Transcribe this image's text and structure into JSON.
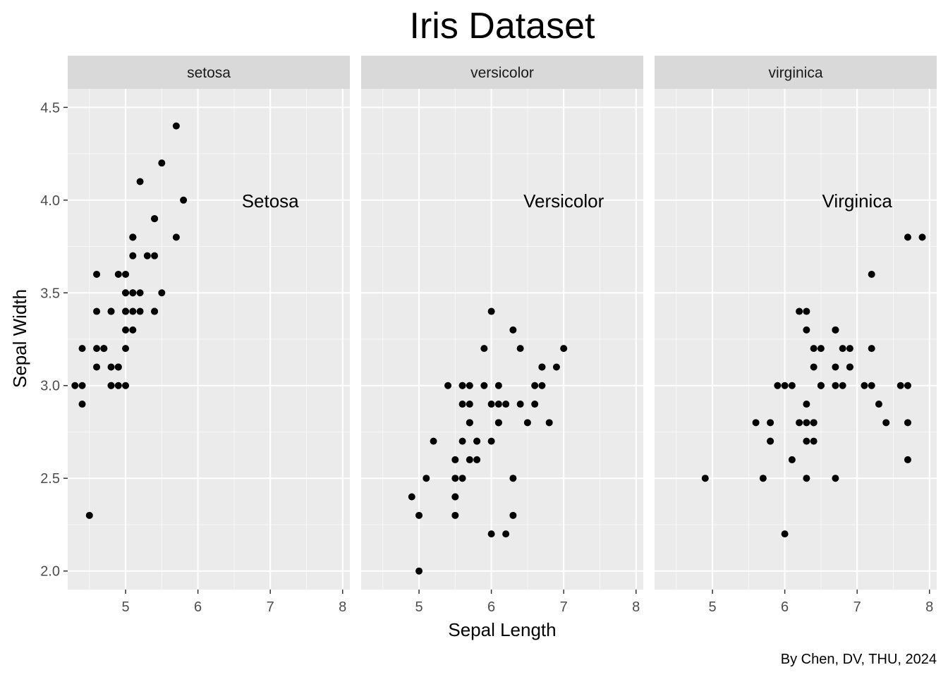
{
  "chart_data": {
    "type": "scatter",
    "title": "Iris Dataset",
    "xlabel": "Sepal Length",
    "ylabel": "Sepal Width",
    "caption": "By Chen, DV, THU, 2024",
    "xlim": [
      4.2,
      8.1
    ],
    "ylim": [
      1.9,
      4.6
    ],
    "x_ticks": [
      5,
      6,
      7,
      8
    ],
    "y_ticks": [
      2.0,
      2.5,
      3.0,
      3.5,
      4.0,
      4.5
    ],
    "x_tick_labels": [
      "5",
      "6",
      "7",
      "8"
    ],
    "y_tick_labels": [
      "2.0",
      "2.5",
      "3.0",
      "3.5",
      "4.0",
      "4.5"
    ],
    "grid": true,
    "colors": {
      "panel_bg": "#ebebeb",
      "strip_bg": "#d9d9d9",
      "grid_major": "#ffffff",
      "point": "#000000"
    },
    "panels": [
      {
        "strip": "setosa",
        "annotation": {
          "text": "Setosa",
          "x": 7.0,
          "y": 4.0
        },
        "points": [
          [
            5.1,
            3.5
          ],
          [
            4.9,
            3.0
          ],
          [
            4.7,
            3.2
          ],
          [
            4.6,
            3.1
          ],
          [
            5.0,
            3.6
          ],
          [
            5.4,
            3.9
          ],
          [
            4.6,
            3.4
          ],
          [
            5.0,
            3.4
          ],
          [
            4.4,
            2.9
          ],
          [
            4.9,
            3.1
          ],
          [
            5.4,
            3.7
          ],
          [
            4.8,
            3.4
          ],
          [
            4.8,
            3.0
          ],
          [
            4.3,
            3.0
          ],
          [
            5.8,
            4.0
          ],
          [
            5.7,
            4.4
          ],
          [
            5.4,
            3.9
          ],
          [
            5.1,
            3.5
          ],
          [
            5.7,
            3.8
          ],
          [
            5.1,
            3.8
          ],
          [
            5.4,
            3.4
          ],
          [
            5.1,
            3.7
          ],
          [
            4.6,
            3.6
          ],
          [
            5.1,
            3.3
          ],
          [
            4.8,
            3.4
          ],
          [
            5.0,
            3.0
          ],
          [
            5.0,
            3.4
          ],
          [
            5.2,
            3.5
          ],
          [
            5.2,
            3.4
          ],
          [
            4.7,
            3.2
          ],
          [
            4.8,
            3.1
          ],
          [
            5.4,
            3.4
          ],
          [
            5.2,
            4.1
          ],
          [
            5.5,
            4.2
          ],
          [
            4.9,
            3.1
          ],
          [
            5.0,
            3.2
          ],
          [
            5.5,
            3.5
          ],
          [
            4.9,
            3.6
          ],
          [
            4.4,
            3.0
          ],
          [
            5.1,
            3.4
          ],
          [
            5.0,
            3.5
          ],
          [
            4.5,
            2.3
          ],
          [
            4.4,
            3.2
          ],
          [
            5.0,
            3.5
          ],
          [
            5.1,
            3.8
          ],
          [
            4.8,
            3.0
          ],
          [
            5.1,
            3.8
          ],
          [
            4.6,
            3.2
          ],
          [
            5.3,
            3.7
          ],
          [
            5.0,
            3.3
          ]
        ]
      },
      {
        "strip": "versicolor",
        "annotation": {
          "text": "Versicolor",
          "x": 7.0,
          "y": 4.0
        },
        "points": [
          [
            7.0,
            3.2
          ],
          [
            6.4,
            3.2
          ],
          [
            6.9,
            3.1
          ],
          [
            5.5,
            2.3
          ],
          [
            6.5,
            2.8
          ],
          [
            5.7,
            2.8
          ],
          [
            6.3,
            3.3
          ],
          [
            4.9,
            2.4
          ],
          [
            6.6,
            2.9
          ],
          [
            5.2,
            2.7
          ],
          [
            5.0,
            2.0
          ],
          [
            5.9,
            3.0
          ],
          [
            6.0,
            2.2
          ],
          [
            6.1,
            2.9
          ],
          [
            5.6,
            2.9
          ],
          [
            6.7,
            3.1
          ],
          [
            5.6,
            3.0
          ],
          [
            5.8,
            2.7
          ],
          [
            6.2,
            2.2
          ],
          [
            5.6,
            2.5
          ],
          [
            5.9,
            3.2
          ],
          [
            6.1,
            2.8
          ],
          [
            6.3,
            2.5
          ],
          [
            6.1,
            2.8
          ],
          [
            6.4,
            2.9
          ],
          [
            6.6,
            3.0
          ],
          [
            6.8,
            2.8
          ],
          [
            6.7,
            3.0
          ],
          [
            6.0,
            2.9
          ],
          [
            5.7,
            2.6
          ],
          [
            5.5,
            2.4
          ],
          [
            5.5,
            2.4
          ],
          [
            5.8,
            2.7
          ],
          [
            6.0,
            2.7
          ],
          [
            5.4,
            3.0
          ],
          [
            6.0,
            3.4
          ],
          [
            6.7,
            3.1
          ],
          [
            6.3,
            2.3
          ],
          [
            5.6,
            3.0
          ],
          [
            5.5,
            2.5
          ],
          [
            5.5,
            2.6
          ],
          [
            6.1,
            3.0
          ],
          [
            5.8,
            2.6
          ],
          [
            5.0,
            2.3
          ],
          [
            5.6,
            2.7
          ],
          [
            5.7,
            3.0
          ],
          [
            5.7,
            2.9
          ],
          [
            6.2,
            2.9
          ],
          [
            5.1,
            2.5
          ],
          [
            5.7,
            2.8
          ]
        ]
      },
      {
        "strip": "virginica",
        "annotation": {
          "text": "Virginica",
          "x": 7.0,
          "y": 4.0
        },
        "points": [
          [
            6.3,
            3.3
          ],
          [
            5.8,
            2.7
          ],
          [
            7.1,
            3.0
          ],
          [
            6.3,
            2.9
          ],
          [
            6.5,
            3.0
          ],
          [
            7.6,
            3.0
          ],
          [
            4.9,
            2.5
          ],
          [
            7.3,
            2.9
          ],
          [
            6.7,
            2.5
          ],
          [
            7.2,
            3.6
          ],
          [
            6.5,
            3.2
          ],
          [
            6.4,
            2.7
          ],
          [
            6.8,
            3.0
          ],
          [
            5.7,
            2.5
          ],
          [
            5.8,
            2.8
          ],
          [
            6.4,
            3.2
          ],
          [
            6.5,
            3.0
          ],
          [
            7.7,
            3.8
          ],
          [
            7.7,
            2.6
          ],
          [
            6.0,
            2.2
          ],
          [
            6.9,
            3.2
          ],
          [
            5.6,
            2.8
          ],
          [
            7.7,
            2.8
          ],
          [
            6.3,
            2.7
          ],
          [
            6.7,
            3.3
          ],
          [
            7.2,
            3.2
          ],
          [
            6.2,
            2.8
          ],
          [
            6.1,
            3.0
          ],
          [
            6.4,
            2.8
          ],
          [
            7.2,
            3.0
          ],
          [
            7.4,
            2.8
          ],
          [
            7.9,
            3.8
          ],
          [
            6.4,
            2.8
          ],
          [
            6.3,
            2.8
          ],
          [
            6.1,
            2.6
          ],
          [
            7.7,
            3.0
          ],
          [
            6.3,
            3.4
          ],
          [
            6.4,
            3.1
          ],
          [
            6.0,
            3.0
          ],
          [
            6.9,
            3.1
          ],
          [
            6.7,
            3.1
          ],
          [
            6.9,
            3.1
          ],
          [
            5.8,
            2.7
          ],
          [
            6.8,
            3.2
          ],
          [
            6.7,
            3.3
          ],
          [
            6.7,
            3.0
          ],
          [
            6.3,
            2.5
          ],
          [
            6.5,
            3.0
          ],
          [
            6.2,
            3.4
          ],
          [
            5.9,
            3.0
          ]
        ]
      }
    ]
  }
}
